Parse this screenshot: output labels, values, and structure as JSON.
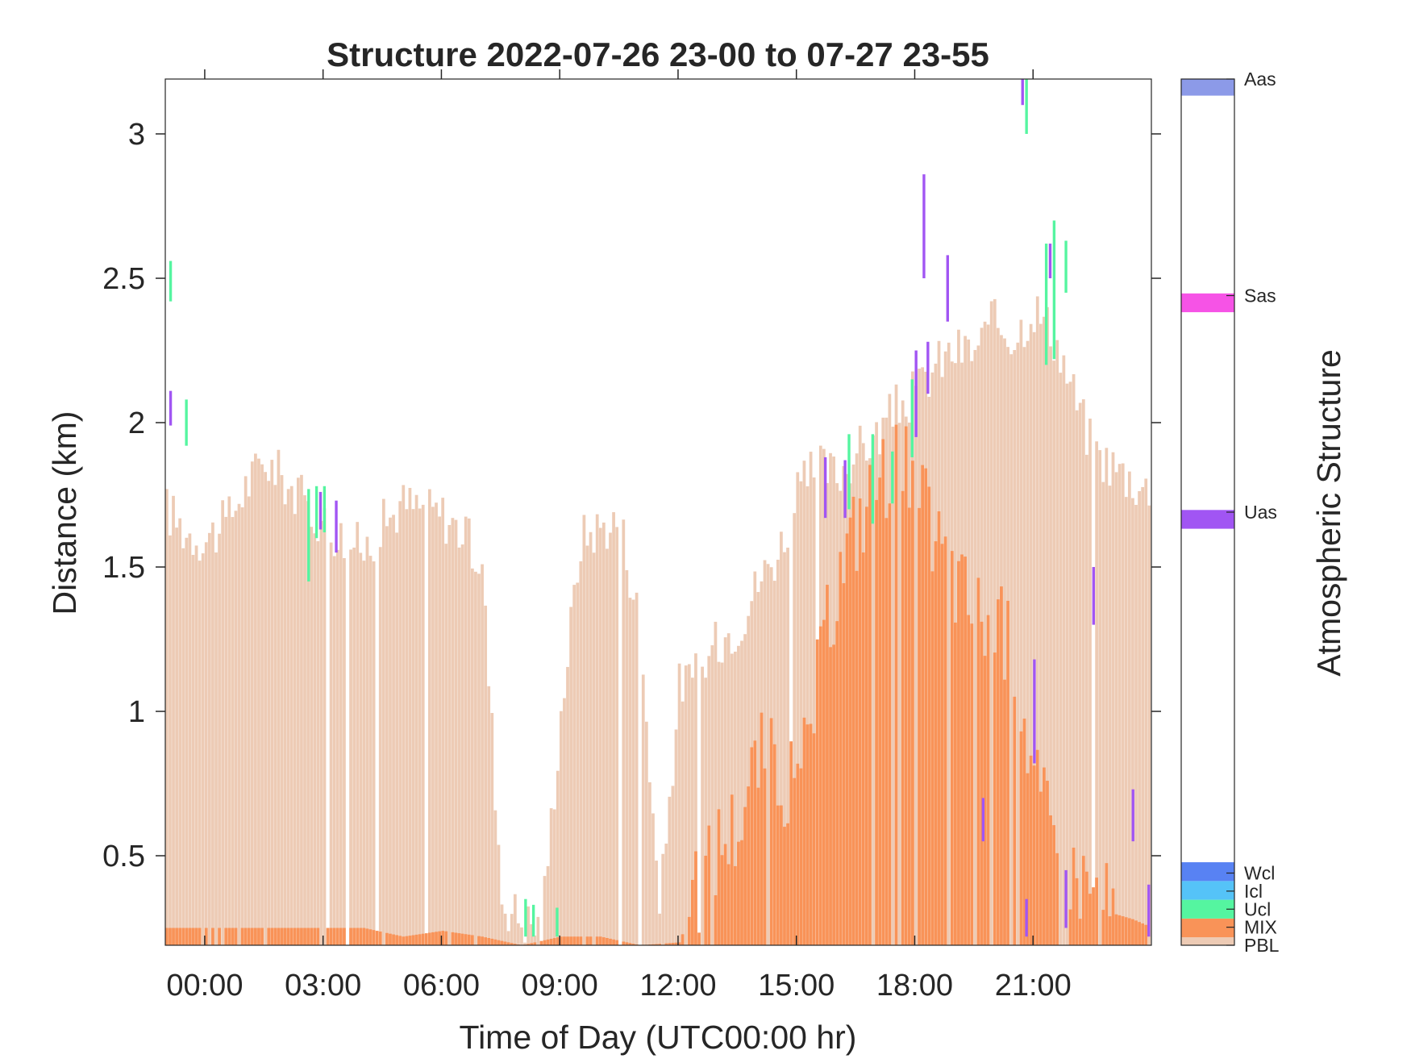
{
  "chart_data": {
    "type": "heatmap",
    "title": "Structure 2022-07-26 23-00 to 07-27 23-55",
    "xlabel": "Time of Day (UTC00:00 hr)",
    "ylabel": "Distance (km)",
    "colorbar_label": "Atmospheric Structure",
    "xlim": [
      -1.0,
      24.0
    ],
    "ylim": [
      0.19,
      3.19
    ],
    "x_ticks": [
      0,
      3,
      6,
      9,
      12,
      15,
      18,
      21
    ],
    "x_tick_labels": [
      "00:00",
      "03:00",
      "06:00",
      "09:00",
      "12:00",
      "15:00",
      "18:00",
      "21:00"
    ],
    "y_ticks": [
      0.5,
      1,
      1.5,
      2,
      2.5,
      3
    ],
    "y_tick_labels": [
      "0.5",
      "1",
      "1.5",
      "2",
      "2.5",
      "3"
    ],
    "grid": false,
    "time_step_hours": 0.0833,
    "classes": [
      {
        "name": "PBL",
        "color": "#EDCBB5"
      },
      {
        "name": "MIX",
        "color": "#F99358"
      },
      {
        "name": "Ucl",
        "color": "#55F5A0"
      },
      {
        "name": "Icl",
        "color": "#55C3F8"
      },
      {
        "name": "Wcl",
        "color": "#5882F3"
      },
      {
        "name": "Uas",
        "color": "#A155F3"
      },
      {
        "name": "Sas",
        "color": "#F653E6"
      },
      {
        "name": "Aas",
        "color": "#8C9AE8"
      }
    ],
    "colorbar": [
      {
        "name": "PBL",
        "from": 0.0,
        "to": 0.11
      },
      {
        "name": "MIX",
        "from": 0.11,
        "to": 0.37
      },
      {
        "name": "Ucl",
        "from": 0.37,
        "to": 0.63
      },
      {
        "name": "Icl",
        "from": 0.63,
        "to": 0.89
      },
      {
        "name": "Wcl",
        "from": 0.89,
        "to": 1.15
      },
      {
        "name": "Uas",
        "from": 5.77,
        "to": 6.03
      },
      {
        "name": "Sas",
        "from": 8.77,
        "to": 9.03
      },
      {
        "name": "Aas",
        "from": 11.77,
        "to": 12.0
      }
    ],
    "colorbar_ticks": [
      {
        "name": "PBL",
        "value": 0.0
      },
      {
        "name": "MIX",
        "value": 0.25
      },
      {
        "name": "Ucl",
        "value": 0.5
      },
      {
        "name": "Icl",
        "value": 0.75
      },
      {
        "name": "Wcl",
        "value": 1.0
      },
      {
        "name": "Uas",
        "value": 6.0
      },
      {
        "name": "Sas",
        "value": 9.0
      },
      {
        "name": "Aas",
        "value": 12.0
      }
    ],
    "colorbar_range": [
      0,
      12
    ],
    "series": [
      {
        "name": "PBL",
        "profile": [
          [
            -1.0,
            1.7
          ],
          [
            -0.5,
            1.62
          ],
          [
            0.0,
            1.6
          ],
          [
            0.5,
            1.65
          ],
          [
            1.0,
            1.78
          ],
          [
            1.5,
            1.87
          ],
          [
            2.0,
            1.8
          ],
          [
            2.5,
            1.72
          ],
          [
            3.0,
            1.65
          ],
          [
            3.5,
            1.6
          ],
          [
            4.0,
            1.56
          ],
          [
            4.5,
            1.65
          ],
          [
            5.0,
            1.72
          ],
          [
            5.5,
            1.7
          ],
          [
            6.0,
            1.68
          ],
          [
            6.5,
            1.62
          ],
          [
            7.0,
            1.5
          ],
          [
            7.5,
            0.35
          ],
          [
            8.0,
            0.28
          ],
          [
            8.5,
            0.25
          ],
          [
            9.0,
            1.0
          ],
          [
            9.5,
            1.6
          ],
          [
            10.0,
            1.64
          ],
          [
            10.5,
            1.66
          ],
          [
            11.0,
            1.3
          ],
          [
            11.5,
            0.3
          ],
          [
            12.0,
            1.1
          ],
          [
            12.5,
            1.12
          ],
          [
            13.0,
            1.25
          ],
          [
            13.5,
            1.3
          ],
          [
            14.0,
            1.45
          ],
          [
            14.5,
            1.55
          ],
          [
            15.0,
            1.75
          ],
          [
            15.5,
            1.85
          ],
          [
            16.0,
            1.82
          ],
          [
            16.5,
            1.9
          ],
          [
            17.0,
            1.95
          ],
          [
            17.5,
            2.05
          ],
          [
            18.0,
            2.1
          ],
          [
            18.5,
            2.2
          ],
          [
            19.0,
            2.25
          ],
          [
            19.5,
            2.25
          ],
          [
            20.0,
            2.35
          ],
          [
            20.5,
            2.3
          ],
          [
            21.0,
            2.4
          ],
          [
            21.5,
            2.3
          ],
          [
            22.0,
            2.1
          ],
          [
            22.5,
            1.9
          ],
          [
            23.0,
            1.85
          ],
          [
            23.5,
            1.8
          ],
          [
            24.0,
            1.75
          ]
        ]
      },
      {
        "name": "MIX",
        "profile": [
          [
            -1.0,
            0.25
          ],
          [
            0.0,
            0.25
          ],
          [
            1.0,
            0.25
          ],
          [
            2.0,
            0.25
          ],
          [
            3.0,
            0.25
          ],
          [
            4.0,
            0.25
          ],
          [
            5.0,
            0.22
          ],
          [
            6.0,
            0.24
          ],
          [
            7.0,
            0.22
          ],
          [
            8.0,
            0.19
          ],
          [
            9.0,
            0.22
          ],
          [
            10.0,
            0.22
          ],
          [
            11.0,
            0.19
          ],
          [
            12.0,
            0.2
          ],
          [
            12.5,
            0.38
          ],
          [
            13.0,
            0.55
          ],
          [
            13.5,
            0.62
          ],
          [
            14.0,
            0.85
          ],
          [
            14.5,
            0.8
          ],
          [
            15.0,
            0.7
          ],
          [
            15.5,
            1.1
          ],
          [
            16.0,
            1.45
          ],
          [
            16.5,
            1.65
          ],
          [
            17.0,
            1.78
          ],
          [
            17.5,
            1.9
          ],
          [
            18.0,
            1.75
          ],
          [
            18.5,
            1.6
          ],
          [
            19.0,
            1.45
          ],
          [
            19.5,
            1.35
          ],
          [
            20.0,
            1.3
          ],
          [
            20.5,
            1.2
          ],
          [
            21.0,
            0.75
          ],
          [
            21.5,
            0.55
          ],
          [
            22.0,
            0.45
          ],
          [
            22.5,
            0.38
          ],
          [
            23.0,
            0.3
          ],
          [
            23.5,
            0.28
          ],
          [
            24.0,
            0.25
          ]
        ]
      },
      {
        "name": "Ucl",
        "segments": [
          [
            -0.9,
            2.42,
            2.56
          ],
          [
            -0.5,
            1.92,
            2.08
          ],
          [
            2.6,
            1.45,
            1.77
          ],
          [
            2.8,
            1.6,
            1.78
          ],
          [
            3.0,
            1.62,
            1.78
          ],
          [
            8.1,
            0.22,
            0.35
          ],
          [
            8.3,
            0.22,
            0.33
          ],
          [
            8.9,
            0.22,
            0.32
          ],
          [
            16.3,
            1.7,
            1.96
          ],
          [
            16.9,
            1.65,
            1.96
          ],
          [
            17.4,
            1.72,
            1.9
          ],
          [
            17.9,
            1.88,
            2.15
          ],
          [
            21.3,
            2.2,
            2.62
          ],
          [
            21.5,
            2.22,
            2.7
          ],
          [
            21.8,
            2.45,
            2.63
          ],
          [
            20.8,
            3.0,
            3.19
          ]
        ]
      },
      {
        "name": "Uas",
        "segments": [
          [
            -0.9,
            1.99,
            2.11
          ],
          [
            2.9,
            1.63,
            1.76
          ],
          [
            3.3,
            1.55,
            1.73
          ],
          [
            15.7,
            1.67,
            1.88
          ],
          [
            16.2,
            1.67,
            1.87
          ],
          [
            18.0,
            1.95,
            2.25
          ],
          [
            18.2,
            2.5,
            2.86
          ],
          [
            18.3,
            2.1,
            2.28
          ],
          [
            18.8,
            2.35,
            2.58
          ],
          [
            19.7,
            0.55,
            0.7
          ],
          [
            20.8,
            0.22,
            0.35
          ],
          [
            21.0,
            0.82,
            1.18
          ],
          [
            21.4,
            2.5,
            2.62
          ],
          [
            21.8,
            0.25,
            0.45
          ],
          [
            22.5,
            1.3,
            1.5
          ],
          [
            23.5,
            0.55,
            0.73
          ],
          [
            23.9,
            0.22,
            0.4
          ],
          [
            20.7,
            3.1,
            3.19
          ]
        ]
      }
    ]
  }
}
